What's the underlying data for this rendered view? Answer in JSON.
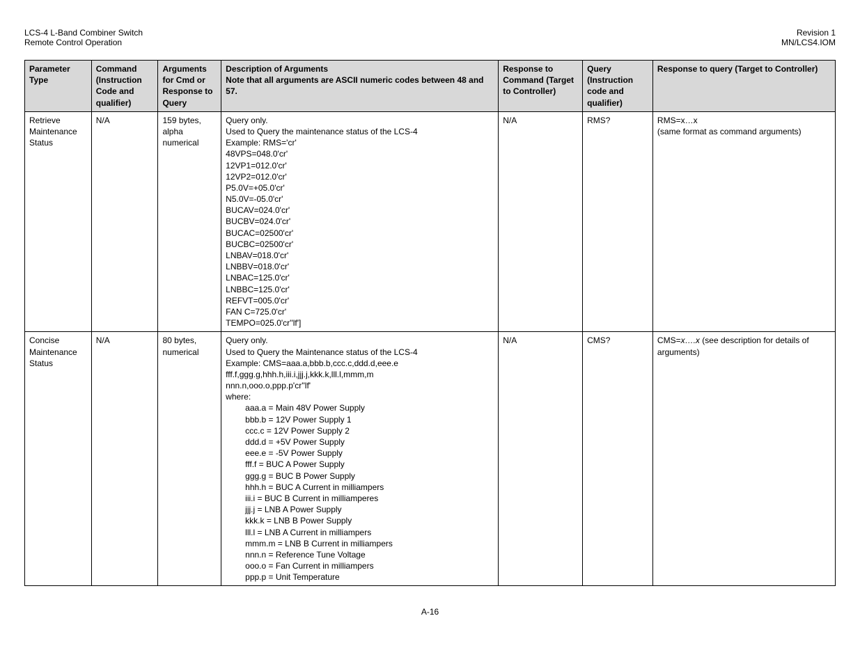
{
  "header": {
    "left1": "LCS-4 L-Band Combiner Switch",
    "left2": "Remote Control Operation",
    "right1": "Revision 1",
    "right2": "MN/LCS4.IOM"
  },
  "columns": {
    "c1": "Parameter Type",
    "c2": "Command (Instruction Code and qualifier)",
    "c3": "Arguments for Cmd or Response to Query",
    "c4a": "Description of Arguments",
    "c4b": "Note that all arguments are ASCII numeric codes between 48 and 57.",
    "c5": "Response to Command (Target to Controller)",
    "c6": "Query (Instruction code and qualifier)",
    "c7": "Response to query (Target to Controller)"
  },
  "row1": {
    "param": "Retrieve Maintenance Status",
    "cmd": "N/A",
    "args": "159 bytes, alpha numerical",
    "desc_lines": [
      "Query only.",
      "Used to Query the maintenance status of the LCS-4",
      "Example: RMS='cr'",
      "48VPS=048.0'cr'",
      "12VP1=012.0'cr'",
      "12VP2=012.0'cr'",
      "P5.0V=+05.0'cr'",
      "N5.0V=-05.0'cr'",
      "BUCAV=024.0'cr'",
      "BUCBV=024.0'cr'",
      "BUCAC=02500'cr'",
      "BUCBC=02500'cr'",
      "LNBAV=018.0'cr'",
      "LNBBV=018.0'cr'",
      "LNBAC=125.0'cr'",
      "LNBBC=125.0'cr'",
      "REFVT=005.0'cr'",
      "FAN C=725.0'cr'",
      "TEMPO=025.0'cr''lf']"
    ],
    "resp_cmd": "N/A",
    "query": "RMS?",
    "resp_q1": "RMS=x…x",
    "resp_q2": "(same format as command arguments)"
  },
  "row2": {
    "param": "Concise Maintenance Status",
    "cmd": "N/A",
    "args": "80 bytes, numerical",
    "desc_top": [
      "Query only.",
      "Used to Query the Maintenance status of the LCS-4",
      "Example: CMS=aaa.a,bbb.b,ccc.c,ddd.d,eee.e",
      "fff.f,ggg.g,hhh.h,iii.i,jjj.j,kkk.k,lll.l,mmm,m",
      "nnn.n,ooo.o,ppp.p'cr''lf'",
      "where:"
    ],
    "desc_indent": [
      "aaa.a = Main 48V Power Supply",
      "bbb.b = 12V Power Supply 1",
      "ccc.c = 12V Power Supply 2",
      "ddd.d = +5V Power Supply",
      "eee.e = -5V Power Supply",
      "fff.f = BUC A Power Supply",
      "ggg.g = BUC B Power Supply",
      "hhh.h = BUC A Current in milliampers",
      "iii.i = BUC B Current in milliamperes",
      "jjj.j = LNB A Power Supply",
      "kkk.k = LNB B Power Supply",
      "lll.l = LNB A Current in milliampers",
      "mmm.m = LNB B Current in milliampers",
      "nnn.n = Reference Tune Voltage",
      "ooo.o = Fan Current in milliampers",
      "ppp.p = Unit Temperature"
    ],
    "resp_cmd": "N/A",
    "query": "CMS?",
    "resp_q_prefix": "CMS=",
    "resp_q_italic": "x….x",
    "resp_q_suffix": " (see description for details of arguments)"
  },
  "footer": "A-16"
}
